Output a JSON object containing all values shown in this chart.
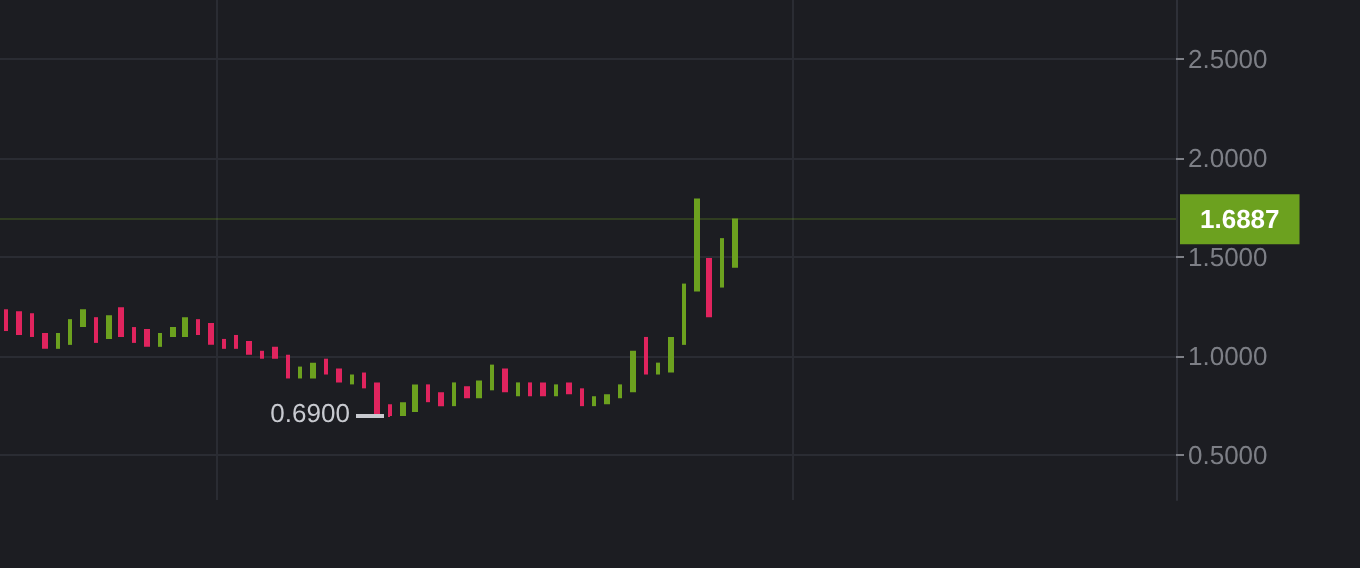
{
  "chart_data": {
    "type": "candlestick",
    "categories": [
      null,
      null,
      null,
      null,
      null,
      null,
      null,
      null,
      null,
      null,
      null,
      null,
      null,
      null,
      null,
      null,
      null,
      null,
      null,
      null,
      null,
      null,
      null,
      null,
      null,
      null,
      null,
      null,
      null,
      null,
      null,
      null,
      null,
      null,
      null,
      null,
      null,
      null,
      null,
      null,
      null,
      null,
      null,
      null,
      null,
      null,
      null,
      null,
      null,
      null,
      null,
      null,
      null,
      null,
      null,
      null,
      null,
      null,
      null,
      null,
      null,
      null,
      null,
      null,
      null,
      null,
      null,
      null,
      null,
      null,
      null,
      null,
      null,
      null,
      null,
      null,
      null,
      null,
      null,
      null,
      null,
      null,
      null,
      null,
      null,
      null,
      null,
      null,
      null,
      null,
      null,
      null
    ],
    "ohlc": [
      [
        1.23,
        1.23,
        1.13,
        1.13
      ],
      [
        1.22,
        1.22,
        1.11,
        1.11
      ],
      [
        1.21,
        1.21,
        1.1,
        1.1
      ],
      [
        1.11,
        1.11,
        1.04,
        1.04
      ],
      [
        1.04,
        1.11,
        1.04,
        1.11
      ],
      [
        1.06,
        1.18,
        1.06,
        1.18
      ],
      [
        1.15,
        1.23,
        1.15,
        1.23
      ],
      [
        1.19,
        1.19,
        1.07,
        1.07
      ],
      [
        1.09,
        1.2,
        1.09,
        1.2
      ],
      [
        1.24,
        1.24,
        1.1,
        1.1
      ],
      [
        1.14,
        1.14,
        1.07,
        1.07
      ],
      [
        1.13,
        1.13,
        1.05,
        1.05
      ],
      [
        1.05,
        1.11,
        1.05,
        1.11
      ],
      [
        1.1,
        1.14,
        1.1,
        1.14
      ],
      [
        1.1,
        1.19,
        1.1,
        1.19
      ],
      [
        1.18,
        1.18,
        1.11,
        1.11
      ],
      [
        1.16,
        1.16,
        1.06,
        1.06
      ],
      [
        1.08,
        1.08,
        1.04,
        1.04
      ],
      [
        1.1,
        1.1,
        1.04,
        1.04
      ],
      [
        1.07,
        1.07,
        1.01,
        1.01
      ],
      [
        1.02,
        1.02,
        0.99,
        0.99
      ],
      [
        1.04,
        1.04,
        0.99,
        0.99
      ],
      [
        1.0,
        1.0,
        0.89,
        0.89
      ],
      [
        0.89,
        0.94,
        0.89,
        0.94
      ],
      [
        0.89,
        0.96,
        0.89,
        0.96
      ],
      [
        0.98,
        0.98,
        0.91,
        0.91
      ],
      [
        0.93,
        0.93,
        0.87,
        0.87
      ],
      [
        0.86,
        0.9,
        0.86,
        0.9
      ],
      [
        0.91,
        0.91,
        0.84,
        0.84
      ],
      [
        0.86,
        0.86,
        0.7,
        0.71
      ],
      [
        0.75,
        0.75,
        0.69,
        0.7
      ],
      [
        0.7,
        0.76,
        0.7,
        0.76
      ],
      [
        0.72,
        0.85,
        0.72,
        0.85
      ],
      [
        0.85,
        0.85,
        0.77,
        0.77
      ],
      [
        0.81,
        0.81,
        0.75,
        0.75
      ],
      [
        0.75,
        0.86,
        0.75,
        0.86
      ],
      [
        0.84,
        0.84,
        0.79,
        0.79
      ],
      [
        0.79,
        0.87,
        0.79,
        0.87
      ],
      [
        0.83,
        0.95,
        0.83,
        0.95
      ],
      [
        0.93,
        0.93,
        0.82,
        0.82
      ],
      [
        0.8,
        0.86,
        0.8,
        0.86
      ],
      [
        0.86,
        0.86,
        0.8,
        0.8
      ],
      [
        0.86,
        0.86,
        0.8,
        0.8
      ],
      [
        0.8,
        0.85,
        0.8,
        0.85
      ],
      [
        0.86,
        0.86,
        0.81,
        0.81
      ],
      [
        0.83,
        0.83,
        0.75,
        0.75
      ],
      [
        0.75,
        0.79,
        0.75,
        0.79
      ],
      [
        0.76,
        0.8,
        0.76,
        0.8
      ],
      [
        0.79,
        0.85,
        0.79,
        0.85
      ],
      [
        0.82,
        1.02,
        0.82,
        1.02
      ],
      [
        1.09,
        1.09,
        0.91,
        0.91
      ],
      [
        0.91,
        0.96,
        0.91,
        0.96
      ],
      [
        0.92,
        1.09,
        0.92,
        1.09
      ],
      [
        1.06,
        1.36,
        1.06,
        1.36
      ],
      [
        1.33,
        1.79,
        1.33,
        1.79
      ],
      [
        1.49,
        1.49,
        1.2,
        1.2
      ],
      [
        1.35,
        1.59,
        1.35,
        1.59
      ],
      [
        1.45,
        1.69,
        1.45,
        1.6887
      ],
      null,
      null,
      null,
      null,
      null,
      null,
      null,
      null,
      null,
      null,
      null,
      null,
      null,
      null,
      null,
      null,
      null,
      null,
      null,
      null,
      null,
      null,
      null,
      null,
      null,
      null,
      null,
      null,
      null,
      null,
      null,
      null,
      null,
      null
    ],
    "colors": [
      "#e0245e",
      "#e0245e",
      "#e0245e",
      "#e0245e",
      "#6ca11f",
      "#6ca11f",
      "#6ca11f",
      "#e0245e",
      "#6ca11f",
      "#e0245e",
      "#e0245e",
      "#e0245e",
      "#6ca11f",
      "#6ca11f",
      "#6ca11f",
      "#e0245e",
      "#e0245e",
      "#e0245e",
      "#e0245e",
      "#e0245e",
      "#e0245e",
      "#e0245e",
      "#e0245e",
      "#6ca11f",
      "#6ca11f",
      "#e0245e",
      "#e0245e",
      "#6ca11f",
      "#e0245e",
      "#e0245e",
      "#e0245e",
      "#6ca11f",
      "#6ca11f",
      "#e0245e",
      "#e0245e",
      "#6ca11f",
      "#e0245e",
      "#6ca11f",
      "#6ca11f",
      "#e0245e",
      "#6ca11f",
      "#e0245e",
      "#e0245e",
      "#6ca11f",
      "#e0245e",
      "#e0245e",
      "#6ca11f",
      "#6ca11f",
      "#6ca11f",
      "#6ca11f",
      "#e0245e",
      "#6ca11f",
      "#6ca11f",
      "#6ca11f",
      "#6ca11f",
      "#e0245e",
      "#6ca11f",
      "#6ca11f",
      null,
      null,
      null,
      null,
      null,
      null,
      null,
      null,
      null,
      null,
      null,
      null,
      null,
      null,
      null,
      null,
      null,
      null,
      null,
      null,
      null,
      null,
      null,
      null,
      null,
      null,
      null,
      null,
      null,
      null,
      null,
      null,
      null,
      null
    ],
    "ylim": [
      0.27,
      2.8
    ],
    "yticks": [
      {
        "value": 0.5,
        "label": "0.5000"
      },
      {
        "value": 1,
        "label": "1.0000"
      },
      {
        "value": 1.5,
        "label": "1.5000"
      },
      {
        "value": 2,
        "label": "2.0000"
      },
      {
        "value": 2.5,
        "label": "2.5000"
      }
    ],
    "grid": true,
    "annotations": [
      "0.6900"
    ],
    "ref_lines": [
      {
        "axis": "y",
        "value": 1.6887,
        "label": "1.6887",
        "color": "#6ca11f"
      }
    ]
  }
}
